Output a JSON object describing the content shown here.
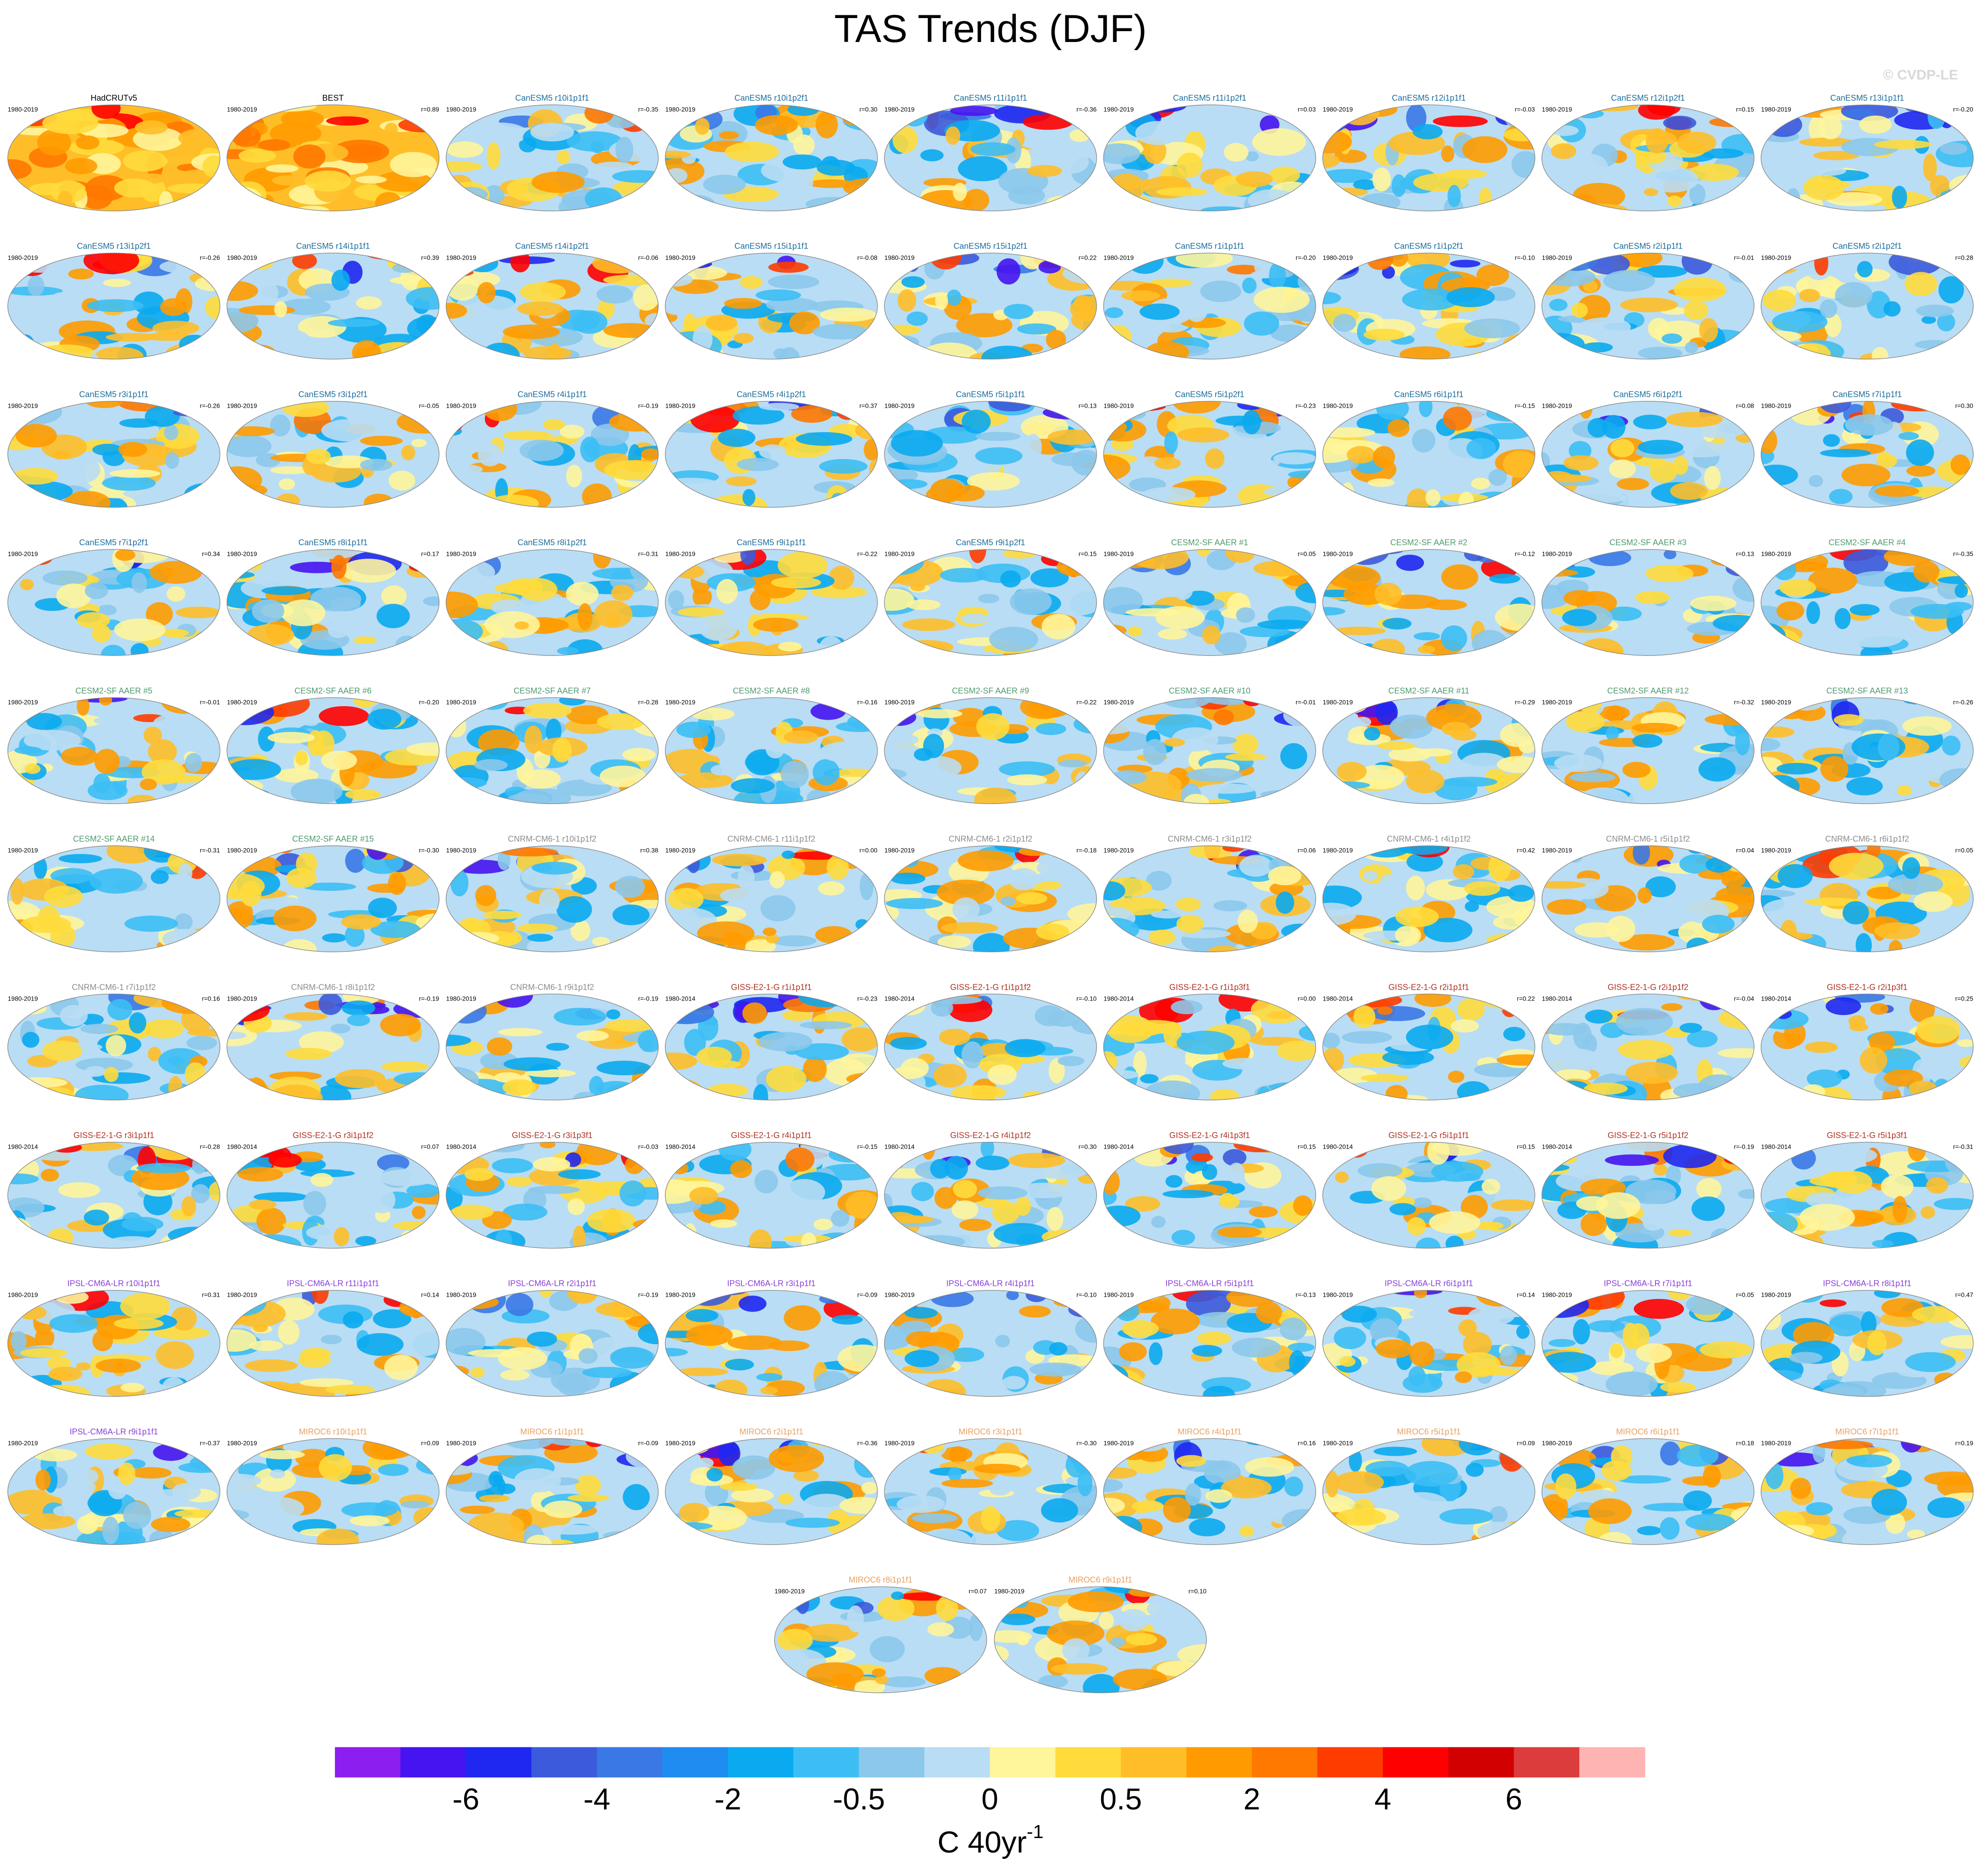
{
  "title": "TAS Trends (DJF)",
  "watermark": "© CVDP-LE",
  "panels": [
    {
      "title": "HadCRUTv5",
      "period": "1980-2019",
      "color": "#000000"
    },
    {
      "title": "BEST",
      "period": "1980-2019",
      "r": "r=0.89",
      "color": "#000000"
    },
    {
      "title": "CanESM5 r10i1p1f1",
      "period": "1980-2019",
      "r": "r=-0.35",
      "color": "#1a6d9c"
    },
    {
      "title": "CanESM5 r10i1p2f1",
      "period": "1980-2019",
      "r": "r=0.30",
      "color": "#1a6d9c"
    },
    {
      "title": "CanESM5 r11i1p1f1",
      "period": "1980-2019",
      "r": "r=-0.36",
      "color": "#1a6d9c"
    },
    {
      "title": "CanESM5 r11i1p2f1",
      "period": "1980-2019",
      "r": "r=0.03",
      "color": "#1a6d9c"
    },
    {
      "title": "CanESM5 r12i1p1f1",
      "period": "1980-2019",
      "r": "r=-0.03",
      "color": "#1a6d9c"
    },
    {
      "title": "CanESM5 r12i1p2f1",
      "period": "1980-2019",
      "r": "r=0.15",
      "color": "#1a6d9c"
    },
    {
      "title": "CanESM5 r13i1p1f1",
      "period": "1980-2019",
      "r": "r=-0.20",
      "color": "#1a6d9c"
    },
    {
      "title": "CanESM5 r13i1p2f1",
      "period": "1980-2019",
      "r": "r=-0.26",
      "color": "#1a6d9c"
    },
    {
      "title": "CanESM5 r14i1p1f1",
      "period": "1980-2019",
      "r": "r=0.39",
      "color": "#1a6d9c"
    },
    {
      "title": "CanESM5 r14i1p2f1",
      "period": "1980-2019",
      "r": "r=-0.06",
      "color": "#1a6d9c"
    },
    {
      "title": "CanESM5 r15i1p1f1",
      "period": "1980-2019",
      "r": "r=-0.08",
      "color": "#1a6d9c"
    },
    {
      "title": "CanESM5 r15i1p2f1",
      "period": "1980-2019",
      "r": "r=0.22",
      "color": "#1a6d9c"
    },
    {
      "title": "CanESM5 r1i1p1f1",
      "period": "1980-2019",
      "r": "r=-0.20",
      "color": "#1a6d9c"
    },
    {
      "title": "CanESM5 r1i1p2f1",
      "period": "1980-2019",
      "r": "r=-0.10",
      "color": "#1a6d9c"
    },
    {
      "title": "CanESM5 r2i1p1f1",
      "period": "1980-2019",
      "r": "r=-0.01",
      "color": "#1a6d9c"
    },
    {
      "title": "CanESM5 r2i1p2f1",
      "period": "1980-2019",
      "r": "r=0.28",
      "color": "#1a6d9c"
    },
    {
      "title": "CanESM5 r3i1p1f1",
      "period": "1980-2019",
      "r": "r=-0.26",
      "color": "#1a6d9c"
    },
    {
      "title": "CanESM5 r3i1p2f1",
      "period": "1980-2019",
      "r": "r=-0.05",
      "color": "#1a6d9c"
    },
    {
      "title": "CanESM5 r4i1p1f1",
      "period": "1980-2019",
      "r": "r=-0.19",
      "color": "#1a6d9c"
    },
    {
      "title": "CanESM5 r4i1p2f1",
      "period": "1980-2019",
      "r": "r=0.37",
      "color": "#1a6d9c"
    },
    {
      "title": "CanESM5 r5i1p1f1",
      "period": "1980-2019",
      "r": "r=0.13",
      "color": "#1a6d9c"
    },
    {
      "title": "CanESM5 r5i1p2f1",
      "period": "1980-2019",
      "r": "r=-0.23",
      "color": "#1a6d9c"
    },
    {
      "title": "CanESM5 r6i1p1f1",
      "period": "1980-2019",
      "r": "r=-0.15",
      "color": "#1a6d9c"
    },
    {
      "title": "CanESM5 r6i1p2f1",
      "period": "1980-2019",
      "r": "r=0.08",
      "color": "#1a6d9c"
    },
    {
      "title": "CanESM5 r7i1p1f1",
      "period": "1980-2019",
      "r": "r=0.30",
      "color": "#1a6d9c"
    },
    {
      "title": "CanESM5 r7i1p2f1",
      "period": "1980-2019",
      "r": "r=0.34",
      "color": "#1a6d9c"
    },
    {
      "title": "CanESM5 r8i1p1f1",
      "period": "1980-2019",
      "r": "r=0.17",
      "color": "#1a6d9c"
    },
    {
      "title": "CanESM5 r8i1p2f1",
      "period": "1980-2019",
      "r": "r=-0.31",
      "color": "#1a6d9c"
    },
    {
      "title": "CanESM5 r9i1p1f1",
      "period": "1980-2019",
      "r": "r=-0.22",
      "color": "#1a6d9c"
    },
    {
      "title": "CanESM5 r9i1p2f1",
      "period": "1980-2019",
      "r": "r=0.15",
      "color": "#1a6d9c"
    },
    {
      "title": "CESM2-SF AAER #1",
      "period": "1980-2019",
      "r": "r=0.05",
      "color": "#4f9a6f"
    },
    {
      "title": "CESM2-SF AAER #2",
      "period": "1980-2019",
      "r": "r=-0.12",
      "color": "#4f9a6f"
    },
    {
      "title": "CESM2-SF AAER #3",
      "period": "1980-2019",
      "r": "r=0.13",
      "color": "#4f9a6f"
    },
    {
      "title": "CESM2-SF AAER #4",
      "period": "1980-2019",
      "r": "r=-0.35",
      "color": "#4f9a6f"
    },
    {
      "title": "CESM2-SF AAER #5",
      "period": "1980-2019",
      "r": "r=-0.01",
      "color": "#4f9a6f"
    },
    {
      "title": "CESM2-SF AAER #6",
      "period": "1980-2019",
      "r": "r=-0.20",
      "color": "#4f9a6f"
    },
    {
      "title": "CESM2-SF AAER #7",
      "period": "1980-2019",
      "r": "r=-0.28",
      "color": "#4f9a6f"
    },
    {
      "title": "CESM2-SF AAER #8",
      "period": "1980-2019",
      "r": "r=-0.16",
      "color": "#4f9a6f"
    },
    {
      "title": "CESM2-SF AAER #9",
      "period": "1980-2019",
      "r": "r=-0.22",
      "color": "#4f9a6f"
    },
    {
      "title": "CESM2-SF AAER #10",
      "period": "1980-2019",
      "r": "r=-0.01",
      "color": "#4f9a6f"
    },
    {
      "title": "CESM2-SF AAER #11",
      "period": "1980-2019",
      "r": "r=-0.29",
      "color": "#4f9a6f"
    },
    {
      "title": "CESM2-SF AAER #12",
      "period": "1980-2019",
      "r": "r=-0.32",
      "color": "#4f9a6f"
    },
    {
      "title": "CESM2-SF AAER #13",
      "period": "1980-2019",
      "r": "r=-0.26",
      "color": "#4f9a6f"
    },
    {
      "title": "CESM2-SF AAER #14",
      "period": "1980-2019",
      "r": "r=-0.31",
      "color": "#4f9a6f"
    },
    {
      "title": "CESM2-SF AAER #15",
      "period": "1980-2019",
      "r": "r=-0.30",
      "color": "#4f9a6f"
    },
    {
      "title": "CNRM-CM6-1 r10i1p1f2",
      "period": "1980-2019",
      "r": "r=0.38",
      "color": "#8c8c8c"
    },
    {
      "title": "CNRM-CM6-1 r11i1p1f2",
      "period": "1980-2019",
      "r": "r=0.00",
      "color": "#8c8c8c"
    },
    {
      "title": "CNRM-CM6-1 r2i1p1f2",
      "period": "1980-2019",
      "r": "r=-0.18",
      "color": "#8c8c8c"
    },
    {
      "title": "CNRM-CM6-1 r3i1p1f2",
      "period": "1980-2019",
      "r": "r=0.06",
      "color": "#8c8c8c"
    },
    {
      "title": "CNRM-CM6-1 r4i1p1f2",
      "period": "1980-2019",
      "r": "r=0.42",
      "color": "#8c8c8c"
    },
    {
      "title": "CNRM-CM6-1 r5i1p1f2",
      "period": "1980-2019",
      "r": "r=0.04",
      "color": "#8c8c8c"
    },
    {
      "title": "CNRM-CM6-1 r6i1p1f2",
      "period": "1980-2019",
      "r": "r=0.05",
      "color": "#8c8c8c"
    },
    {
      "title": "CNRM-CM6-1 r7i1p1f2",
      "period": "1980-2019",
      "r": "r=0.16",
      "color": "#8c8c8c"
    },
    {
      "title": "CNRM-CM6-1 r8i1p1f2",
      "period": "1980-2019",
      "r": "r=-0.19",
      "color": "#8c8c8c"
    },
    {
      "title": "CNRM-CM6-1 r9i1p1f2",
      "period": "1980-2019",
      "r": "r=-0.19",
      "color": "#8c8c8c"
    },
    {
      "title": "GISS-E2-1-G r1i1p1f1",
      "period": "1980-2014",
      "r": "r=-0.23",
      "color": "#b03020"
    },
    {
      "title": "GISS-E2-1-G r1i1p1f2",
      "period": "1980-2014",
      "r": "r=-0.10",
      "color": "#b03020"
    },
    {
      "title": "GISS-E2-1-G r1i1p3f1",
      "period": "1980-2014",
      "r": "r=0.00",
      "color": "#b03020"
    },
    {
      "title": "GISS-E2-1-G r2i1p1f1",
      "period": "1980-2014",
      "r": "r=0.22",
      "color": "#b03020"
    },
    {
      "title": "GISS-E2-1-G r2i1p1f2",
      "period": "1980-2014",
      "r": "r=-0.04",
      "color": "#b03020"
    },
    {
      "title": "GISS-E2-1-G r2i1p3f1",
      "period": "1980-2014",
      "r": "r=0.25",
      "color": "#b03020"
    },
    {
      "title": "GISS-E2-1-G r3i1p1f1",
      "period": "1980-2014",
      "r": "r=-0.28",
      "color": "#b03020"
    },
    {
      "title": "GISS-E2-1-G r3i1p1f2",
      "period": "1980-2014",
      "r": "r=0.07",
      "color": "#b03020"
    },
    {
      "title": "GISS-E2-1-G r3i1p3f1",
      "period": "1980-2014",
      "r": "r=-0.03",
      "color": "#b03020"
    },
    {
      "title": "GISS-E2-1-G r4i1p1f1",
      "period": "1980-2014",
      "r": "r=-0.15",
      "color": "#b03020"
    },
    {
      "title": "GISS-E2-1-G r4i1p1f2",
      "period": "1980-2014",
      "r": "r=0.30",
      "color": "#b03020"
    },
    {
      "title": "GISS-E2-1-G r4i1p3f1",
      "period": "1980-2014",
      "r": "r=0.15",
      "color": "#b03020"
    },
    {
      "title": "GISS-E2-1-G r5i1p1f1",
      "period": "1980-2014",
      "r": "r=0.15",
      "color": "#b03020"
    },
    {
      "title": "GISS-E2-1-G r5i1p1f2",
      "period": "1980-2014",
      "r": "r=-0.19",
      "color": "#b03020"
    },
    {
      "title": "GISS-E2-1-G r5i1p3f1",
      "period": "1980-2014",
      "r": "r=-0.31",
      "color": "#b03020"
    },
    {
      "title": "IPSL-CM6A-LR r10i1p1f1",
      "period": "1980-2019",
      "r": "r=0.31",
      "color": "#8840d8"
    },
    {
      "title": "IPSL-CM6A-LR r11i1p1f1",
      "period": "1980-2019",
      "r": "r=0.14",
      "color": "#8840d8"
    },
    {
      "title": "IPSL-CM6A-LR r2i1p1f1",
      "period": "1980-2019",
      "r": "r=-0.19",
      "color": "#8840d8"
    },
    {
      "title": "IPSL-CM6A-LR r3i1p1f1",
      "period": "1980-2019",
      "r": "r=-0.09",
      "color": "#8840d8"
    },
    {
      "title": "IPSL-CM6A-LR r4i1p1f1",
      "period": "1980-2019",
      "r": "r=-0.10",
      "color": "#8840d8"
    },
    {
      "title": "IPSL-CM6A-LR r5i1p1f1",
      "period": "1980-2019",
      "r": "r=-0.13",
      "color": "#8840d8"
    },
    {
      "title": "IPSL-CM6A-LR r6i1p1f1",
      "period": "1980-2019",
      "r": "r=0.14",
      "color": "#8840d8"
    },
    {
      "title": "IPSL-CM6A-LR r7i1p1f1",
      "period": "1980-2019",
      "r": "r=0.05",
      "color": "#8840d8"
    },
    {
      "title": "IPSL-CM6A-LR r8i1p1f1",
      "period": "1980-2019",
      "r": "r=0.47",
      "color": "#8840d8"
    },
    {
      "title": "IPSL-CM6A-LR r9i1p1f1",
      "period": "1980-2019",
      "r": "r=-0.37",
      "color": "#8840d8"
    },
    {
      "title": "MIROC6 r10i1p1f1",
      "period": "1980-2019",
      "r": "r=0.09",
      "color": "#e8a060"
    },
    {
      "title": "MIROC6 r1i1p1f1",
      "period": "1980-2019",
      "r": "r=-0.09",
      "color": "#e8a060"
    },
    {
      "title": "MIROC6 r2i1p1f1",
      "period": "1980-2019",
      "r": "r=-0.36",
      "color": "#e8a060"
    },
    {
      "title": "MIROC6 r3i1p1f1",
      "period": "1980-2019",
      "r": "r=-0.30",
      "color": "#e8a060"
    },
    {
      "title": "MIROC6 r4i1p1f1",
      "period": "1980-2019",
      "r": "r=0.16",
      "color": "#e8a060"
    },
    {
      "title": "MIROC6 r5i1p1f1",
      "period": "1980-2019",
      "r": "r=0.09",
      "color": "#e8a060"
    },
    {
      "title": "MIROC6 r6i1p1f1",
      "period": "1980-2019",
      "r": "r=0.18",
      "color": "#e8a060"
    },
    {
      "title": "MIROC6 r7i1p1f1",
      "period": "1980-2019",
      "r": "r=0.19",
      "color": "#e8a060"
    },
    {
      "title": "MIROC6 r8i1p1f1",
      "period": "1980-2019",
      "r": "r=0.07",
      "color": "#e8a060"
    },
    {
      "title": "MIROC6 r9i1p1f1",
      "period": "1980-2019",
      "r": "r=0.10",
      "color": "#e8a060"
    }
  ],
  "colorbar": {
    "colors": [
      "#8c1ef0",
      "#4614f0",
      "#1e28f0",
      "#3c5adc",
      "#3a78e6",
      "#1e8cf0",
      "#0aaaf0",
      "#3cbef5",
      "#8cc8eb",
      "#b9ddf4",
      "#fff59b",
      "#ffdc3c",
      "#ffbe28",
      "#ff9b00",
      "#ff7800",
      "#ff3c00",
      "#ff0000",
      "#d20000",
      "#dc3c3c",
      "#ffb4b4"
    ],
    "ticks": [
      -6,
      -4,
      -2,
      -0.5,
      0,
      0.5,
      2,
      4,
      6
    ],
    "unit": "C 40yr",
    "unit_exponent": "-1"
  }
}
